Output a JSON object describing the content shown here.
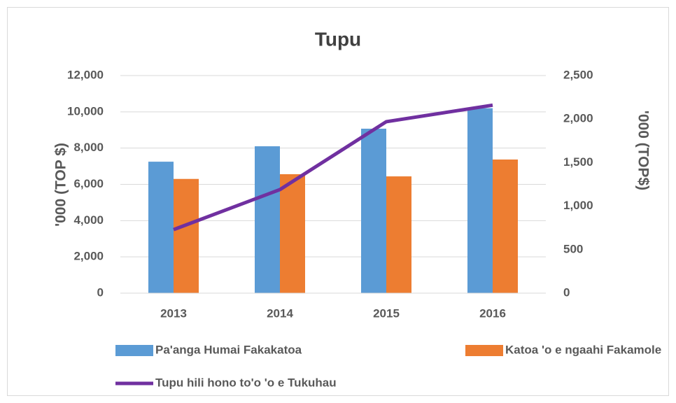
{
  "chart_data": {
    "type": "bar_line",
    "title": "Tupu",
    "ylabel": "'000 (TOP $)",
    "y2label": "'000 (TOP$)",
    "categories": [
      "2013",
      "2014",
      "2015",
      "2016"
    ],
    "series": [
      {
        "name": "Pa'anga Humai Fakakatoa",
        "type": "bar",
        "color": "#5b9bd5",
        "values": [
          7250,
          8100,
          9070,
          10200
        ]
      },
      {
        "name": "Katoa 'o e ngaahi Fakamole",
        "type": "bar",
        "color": "#ed7d31",
        "values": [
          6300,
          6560,
          6440,
          7370
        ]
      },
      {
        "name": "Tupu hili hono to'o 'o e Tukuhau",
        "type": "line",
        "axis": "y2",
        "color": "#7030a0",
        "values": [
          730,
          1190,
          1970,
          2160
        ]
      }
    ],
    "ylim": [
      0,
      12000
    ],
    "yticks": [
      0,
      {
        "value": 2000,
        "label": "2,000"
      },
      {
        "value": 4000,
        "label": "4,000"
      },
      {
        "value": 6000,
        "label": "6,000"
      },
      {
        "value": 8000,
        "label": "8,000"
      },
      {
        "value": 10000,
        "label": "10,000"
      },
      {
        "value": 12000,
        "label": "12,000"
      }
    ],
    "y2lim": [
      0,
      2500
    ],
    "y2ticks": [
      0,
      500,
      {
        "value": 1000,
        "label": "1,000"
      },
      {
        "value": 1500,
        "label": "1,500"
      },
      {
        "value": 2000,
        "label": "2,000"
      },
      {
        "value": 2500,
        "label": "2,500"
      }
    ],
    "grid": true,
    "legend": "bottom"
  }
}
